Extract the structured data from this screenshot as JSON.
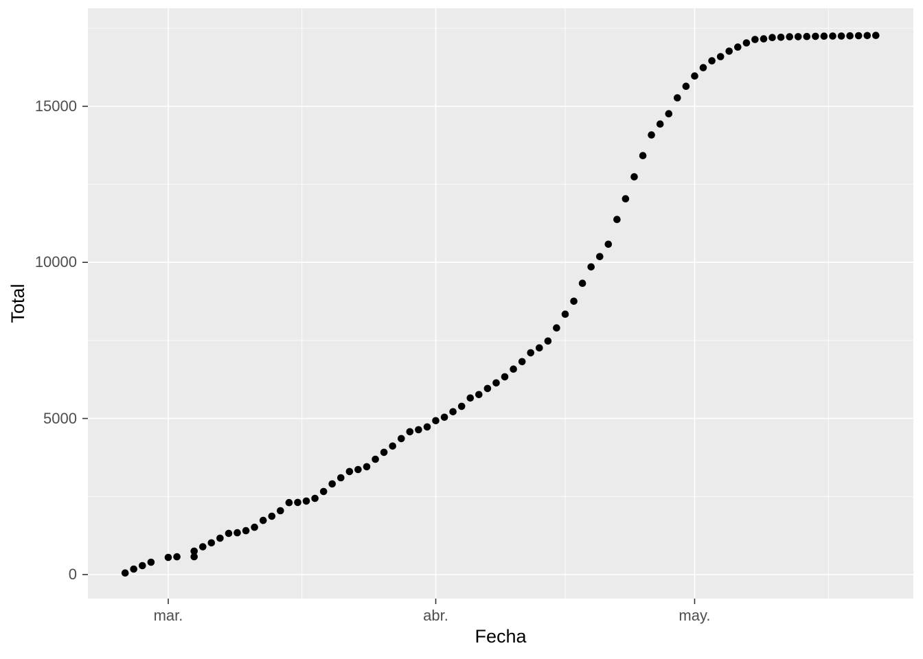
{
  "figure": {
    "background": "#FFFFFF"
  },
  "chart_data": {
    "type": "scatter",
    "title": "",
    "xlabel": "Fecha",
    "ylabel": "Total",
    "panel_background": "#EBEBEB",
    "grid_color": "#FFFFFF",
    "point_color": "#000000",
    "tick_label_color": "#4D4D4D",
    "tick_mark_color": "#333333",
    "axis_title_color": "#000000",
    "legend": "none",
    "x_ticks": [
      {
        "label": "mar.",
        "date": "2020-03-01"
      },
      {
        "label": "abr.",
        "date": "2020-04-01"
      },
      {
        "label": "may.",
        "date": "2020-05-01"
      }
    ],
    "x_next_break_date": "2020-06-01",
    "y_ticks": [
      {
        "label": "0",
        "value": 0
      },
      {
        "label": "5000",
        "value": 5000
      },
      {
        "label": "10000",
        "value": 10000
      },
      {
        "label": "15000",
        "value": 15000
      }
    ],
    "y_minor": [
      2500,
      7500,
      12500,
      17500
    ],
    "ylim": [
      -794,
      18130
    ],
    "x_range": [
      "2020-02-25",
      "2020-05-22"
    ],
    "points": [
      [
        "2020-02-25",
        50
      ],
      [
        "2020-02-26",
        175
      ],
      [
        "2020-02-27",
        285
      ],
      [
        "2020-02-28",
        395
      ],
      [
        "2020-03-01",
        550
      ],
      [
        "2020-03-02",
        570
      ],
      [
        "2020-03-04",
        572
      ],
      [
        "2020-03-04",
        750
      ],
      [
        "2020-03-05",
        890
      ],
      [
        "2020-03-06",
        1015
      ],
      [
        "2020-03-07",
        1165
      ],
      [
        "2020-03-08",
        1320
      ],
      [
        "2020-03-09",
        1340
      ],
      [
        "2020-03-10",
        1405
      ],
      [
        "2020-03-11",
        1515
      ],
      [
        "2020-03-12",
        1735
      ],
      [
        "2020-03-13",
        1870
      ],
      [
        "2020-03-14",
        2045
      ],
      [
        "2020-03-15",
        2305
      ],
      [
        "2020-03-16",
        2310
      ],
      [
        "2020-03-17",
        2355
      ],
      [
        "2020-03-18",
        2440
      ],
      [
        "2020-03-19",
        2660
      ],
      [
        "2020-03-20",
        2905
      ],
      [
        "2020-03-21",
        3100
      ],
      [
        "2020-03-22",
        3300
      ],
      [
        "2020-03-23",
        3365
      ],
      [
        "2020-03-24",
        3455
      ],
      [
        "2020-03-25",
        3695
      ],
      [
        "2020-03-26",
        3915
      ],
      [
        "2020-03-27",
        4115
      ],
      [
        "2020-03-28",
        4355
      ],
      [
        "2020-03-29",
        4575
      ],
      [
        "2020-03-30",
        4640
      ],
      [
        "2020-03-31",
        4730
      ],
      [
        "2020-04-01",
        4930
      ],
      [
        "2020-04-02",
        5040
      ],
      [
        "2020-04-03",
        5215
      ],
      [
        "2020-04-04",
        5390
      ],
      [
        "2020-04-05",
        5655
      ],
      [
        "2020-04-06",
        5765
      ],
      [
        "2020-04-07",
        5960
      ],
      [
        "2020-04-08",
        6140
      ],
      [
        "2020-04-09",
        6335
      ],
      [
        "2020-04-10",
        6580
      ],
      [
        "2020-04-11",
        6820
      ],
      [
        "2020-04-12",
        7105
      ],
      [
        "2020-04-13",
        7260
      ],
      [
        "2020-04-14",
        7480
      ],
      [
        "2020-04-15",
        7900
      ],
      [
        "2020-04-16",
        8340
      ],
      [
        "2020-04-17",
        8755
      ],
      [
        "2020-04-18",
        9330
      ],
      [
        "2020-04-19",
        9855
      ],
      [
        "2020-04-20",
        10185
      ],
      [
        "2020-04-21",
        10580
      ],
      [
        "2020-04-22",
        11375
      ],
      [
        "2020-04-23",
        12035
      ],
      [
        "2020-04-24",
        12740
      ],
      [
        "2020-04-25",
        13420
      ],
      [
        "2020-04-26",
        14080
      ],
      [
        "2020-04-27",
        14430
      ],
      [
        "2020-04-28",
        14760
      ],
      [
        "2020-04-29",
        15270
      ],
      [
        "2020-04-30",
        15640
      ],
      [
        "2020-05-01",
        15970
      ],
      [
        "2020-05-02",
        16235
      ],
      [
        "2020-05-03",
        16455
      ],
      [
        "2020-05-04",
        16590
      ],
      [
        "2020-05-05",
        16765
      ],
      [
        "2020-05-06",
        16895
      ],
      [
        "2020-05-07",
        17030
      ],
      [
        "2020-05-08",
        17140
      ],
      [
        "2020-05-09",
        17160
      ],
      [
        "2020-05-10",
        17200
      ],
      [
        "2020-05-11",
        17210
      ],
      [
        "2020-05-12",
        17225
      ],
      [
        "2020-05-13",
        17230
      ],
      [
        "2020-05-14",
        17235
      ],
      [
        "2020-05-15",
        17240
      ],
      [
        "2020-05-16",
        17245
      ],
      [
        "2020-05-17",
        17250
      ],
      [
        "2020-05-18",
        17250
      ],
      [
        "2020-05-19",
        17255
      ],
      [
        "2020-05-20",
        17260
      ],
      [
        "2020-05-21",
        17265
      ],
      [
        "2020-05-22",
        17270
      ]
    ]
  }
}
